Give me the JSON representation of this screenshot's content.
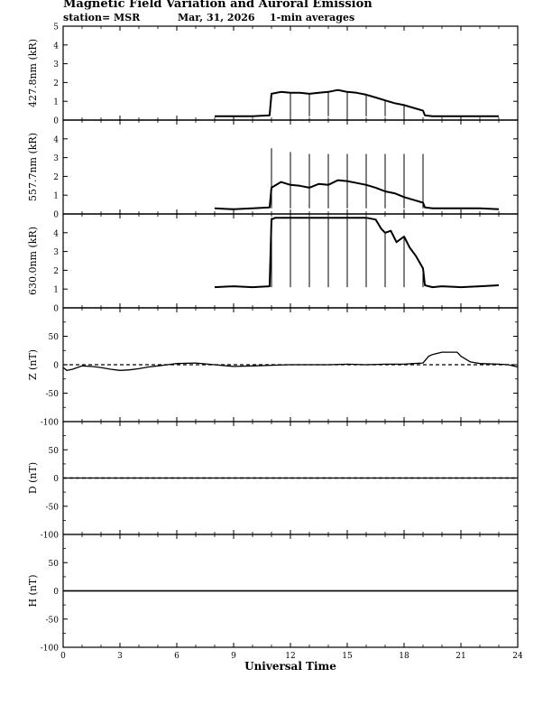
{
  "header": {
    "title": "Magnetic Field Variation and Auroral Emission",
    "station": "station= MSR",
    "date": "Mar, 31,  2026",
    "averaging": "1-min averages"
  },
  "chart_data": {
    "type": "line",
    "xlabel": "Universal Time",
    "xlim": [
      0,
      24
    ],
    "x_ticks": [
      0,
      3,
      6,
      9,
      12,
      15,
      18,
      21,
      24
    ],
    "panels": [
      {
        "ylabel": "427.8nm (kR)",
        "ylim": [
          0,
          5
        ],
        "y_ticks": [
          0,
          1,
          2,
          3,
          4,
          5
        ],
        "baseline": 0,
        "series": {
          "x": [
            8.0,
            9.0,
            10.0,
            10.9,
            11.0,
            11.5,
            12.0,
            12.5,
            13.0,
            13.5,
            14.0,
            14.5,
            15.0,
            15.5,
            16.0,
            16.5,
            17.0,
            17.5,
            18.0,
            18.5,
            19.0,
            19.1,
            19.5,
            20.0,
            21.0,
            22.0,
            23.0
          ],
          "y": [
            0.2,
            0.2,
            0.2,
            0.25,
            1.4,
            1.5,
            1.45,
            1.45,
            1.4,
            1.45,
            1.5,
            1.6,
            1.5,
            1.45,
            1.35,
            1.2,
            1.05,
            0.9,
            0.8,
            0.65,
            0.5,
            0.25,
            0.2,
            0.2,
            0.2,
            0.2,
            0.2
          ]
        },
        "spikes": [
          {
            "x": 12,
            "top": 1.45
          },
          {
            "x": 13,
            "top": 1.4
          },
          {
            "x": 14,
            "top": 1.5
          },
          {
            "x": 15,
            "top": 1.5
          },
          {
            "x": 16,
            "top": 1.35
          },
          {
            "x": 17,
            "top": 1.05
          },
          {
            "x": 18,
            "top": 0.8
          }
        ],
        "spike_floor": 0.2
      },
      {
        "ylabel": "557.7nm (kR)",
        "ylim": [
          0,
          5
        ],
        "y_ticks": [
          0,
          1,
          2,
          3,
          4
        ],
        "baseline": 0,
        "series": {
          "x": [
            8.0,
            9.0,
            10.0,
            10.9,
            11.0,
            11.5,
            12.0,
            12.5,
            13.0,
            13.5,
            14.0,
            14.5,
            15.0,
            15.5,
            16.0,
            16.5,
            17.0,
            17.5,
            18.0,
            18.5,
            19.0,
            19.1,
            19.5,
            20.0,
            21.0,
            22.0,
            23.0
          ],
          "y": [
            0.3,
            0.25,
            0.3,
            0.35,
            1.4,
            1.7,
            1.55,
            1.5,
            1.4,
            1.6,
            1.55,
            1.8,
            1.75,
            1.65,
            1.55,
            1.4,
            1.2,
            1.1,
            0.9,
            0.75,
            0.6,
            0.35,
            0.3,
            0.3,
            0.3,
            0.3,
            0.25
          ]
        },
        "spikes": [
          {
            "x": 11,
            "top": 3.5
          },
          {
            "x": 12,
            "top": 3.3
          },
          {
            "x": 13,
            "top": 3.2
          },
          {
            "x": 14,
            "top": 3.2
          },
          {
            "x": 15,
            "top": 3.2
          },
          {
            "x": 16,
            "top": 3.2
          },
          {
            "x": 17,
            "top": 3.2
          },
          {
            "x": 18,
            "top": 3.2
          },
          {
            "x": 19,
            "top": 3.2
          }
        ],
        "spike_floor": 0.3
      },
      {
        "ylabel": "630.0nm (kR)",
        "ylim": [
          0,
          5
        ],
        "y_ticks": [
          0,
          1,
          2,
          3,
          4
        ],
        "baseline": 0,
        "series": {
          "x": [
            8.0,
            9.0,
            10.0,
            10.9,
            11.0,
            11.2,
            12.0,
            13.0,
            14.0,
            15.0,
            16.0,
            16.5,
            16.8,
            17.0,
            17.3,
            17.6,
            18.0,
            18.3,
            18.6,
            19.0,
            19.1,
            19.5,
            20.0,
            21.0,
            22.0,
            23.0
          ],
          "y": [
            1.1,
            1.15,
            1.1,
            1.15,
            4.7,
            4.8,
            4.8,
            4.8,
            4.8,
            4.8,
            4.8,
            4.7,
            4.2,
            4.0,
            4.1,
            3.5,
            3.8,
            3.2,
            2.8,
            2.1,
            1.2,
            1.1,
            1.15,
            1.1,
            1.15,
            1.2
          ]
        },
        "spikes": [
          {
            "x": 11,
            "top": 4.8
          },
          {
            "x": 12,
            "top": 4.8
          },
          {
            "x": 13,
            "top": 4.8
          },
          {
            "x": 14,
            "top": 4.8
          },
          {
            "x": 15,
            "top": 4.8
          },
          {
            "x": 16,
            "top": 4.8
          },
          {
            "x": 17,
            "top": 4.0
          },
          {
            "x": 18,
            "top": 3.8
          },
          {
            "x": 19,
            "top": 2.1
          }
        ],
        "spike_floor": 1.1
      },
      {
        "ylabel": "Z (nT)",
        "ylim": [
          -100,
          100
        ],
        "y_ticks": [
          -100,
          -50,
          0,
          50
        ],
        "baseline": 0,
        "series": {
          "x": [
            0.0,
            0.2,
            0.5,
            1.0,
            1.5,
            2.0,
            2.5,
            3.0,
            3.5,
            4.0,
            4.5,
            5.0,
            5.5,
            6.0,
            7.0,
            8.0,
            9.0,
            10.0,
            11.0,
            12.0,
            13.0,
            14.0,
            15.0,
            16.0,
            17.0,
            18.0,
            18.5,
            19.0,
            19.3,
            19.5,
            20.0,
            20.5,
            20.8,
            21.0,
            21.5,
            22.0,
            23.0,
            23.5,
            24.0
          ],
          "y": [
            -5,
            -10,
            -8,
            -2,
            -3,
            -5,
            -8,
            -10,
            -9,
            -7,
            -4,
            -2,
            0,
            2,
            3,
            0,
            -3,
            -2,
            -1,
            0,
            0,
            0,
            1,
            0,
            1,
            1,
            2,
            3,
            15,
            18,
            22,
            22,
            22,
            15,
            5,
            2,
            1,
            0,
            -4
          ]
        }
      },
      {
        "ylabel": "D (nT)",
        "ylim": [
          -100,
          100
        ],
        "y_ticks": [
          -100,
          -50,
          0,
          50
        ],
        "baseline": 0,
        "series": {
          "x": [
            0,
            24
          ],
          "y": [
            0,
            0
          ]
        }
      },
      {
        "ylabel": "H (nT)",
        "ylim": [
          -100,
          100
        ],
        "y_ticks": [
          -100,
          -50,
          0,
          50
        ],
        "baseline": 0,
        "series": {
          "x": [
            0,
            24
          ],
          "y": [
            0,
            0
          ]
        }
      }
    ]
  }
}
